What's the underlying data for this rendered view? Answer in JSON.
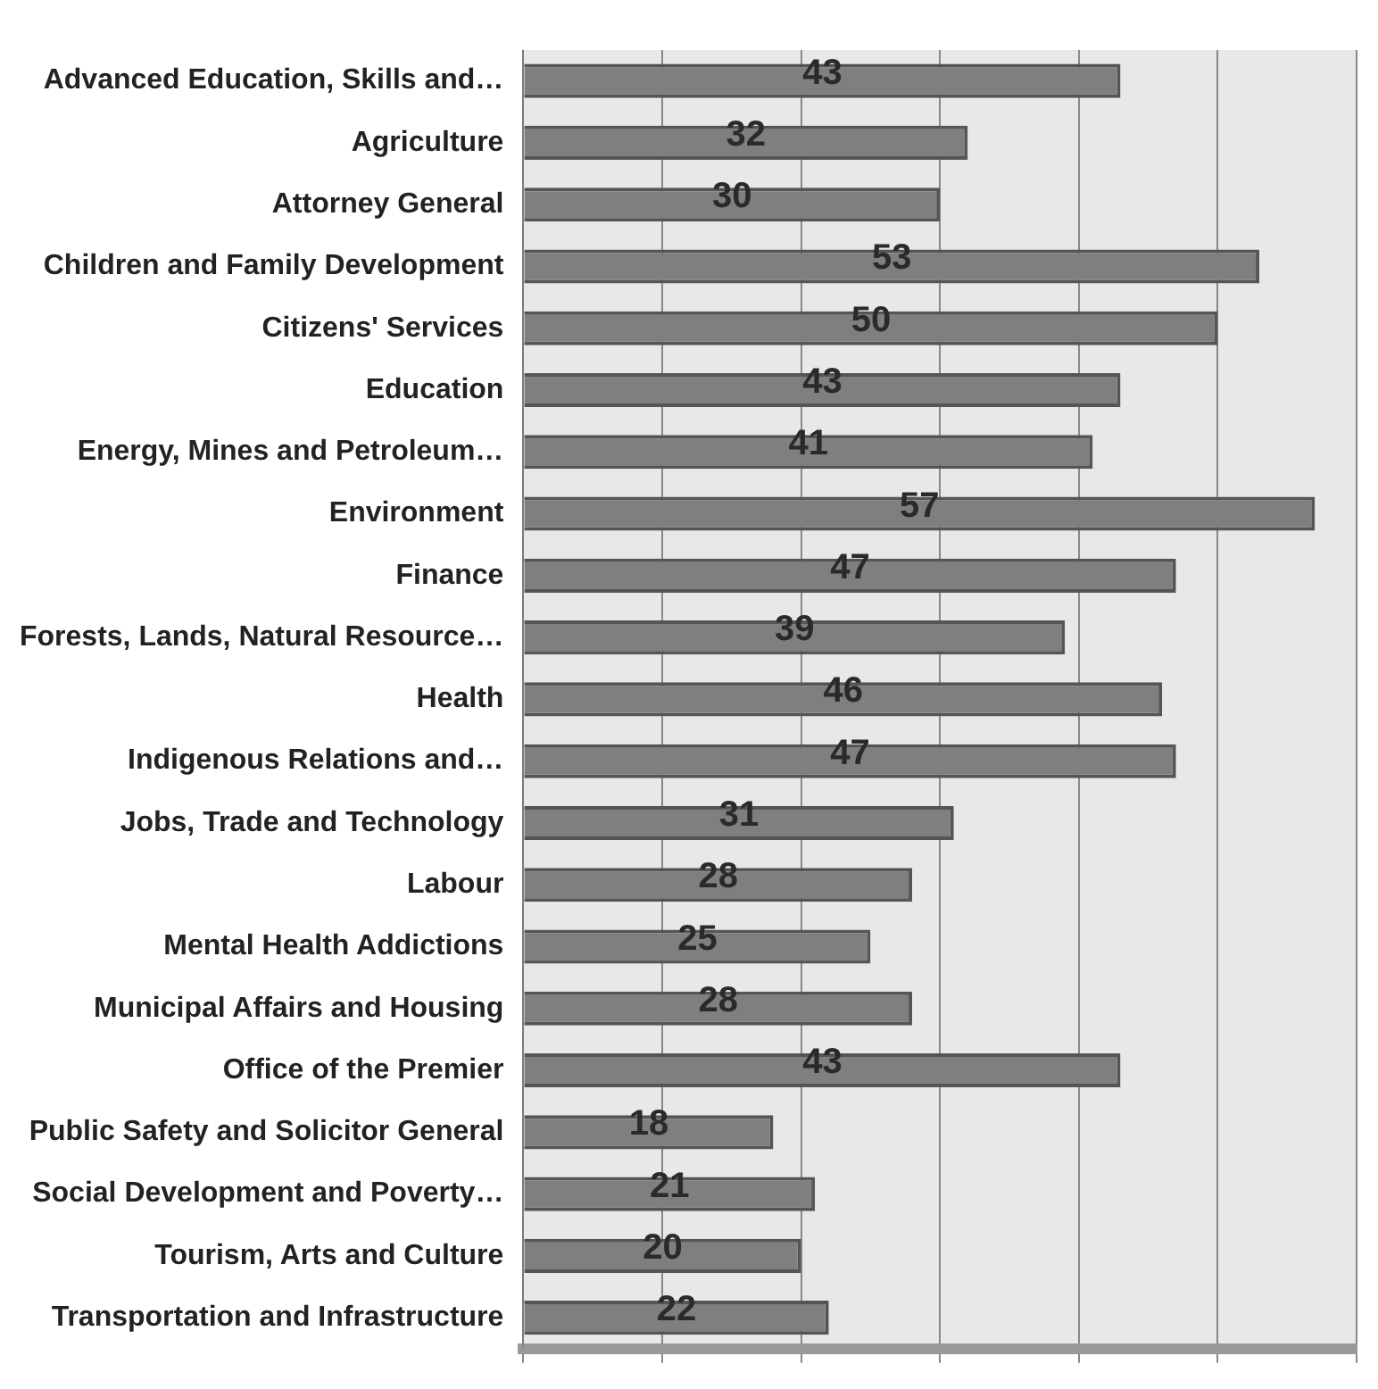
{
  "chart_data": {
    "type": "bar",
    "orientation": "horizontal",
    "categories": [
      "Advanced Education, Skills and…",
      "Agriculture",
      "Attorney General",
      "Children and Family Development",
      "Citizens' Services",
      "Education",
      "Energy, Mines and Petroleum…",
      "Environment",
      "Finance",
      "Forests, Lands, Natural Resource…",
      "Health",
      "Indigenous Relations and…",
      "Jobs, Trade and Technology",
      "Labour",
      "Mental Health Addictions",
      "Municipal Affairs and Housing",
      "Office of the Premier",
      "Public Safety and Solicitor General",
      "Social Development and Poverty…",
      "Tourism, Arts and Culture",
      "Transportation and Infrastructure"
    ],
    "values": [
      43,
      32,
      30,
      53,
      50,
      43,
      41,
      57,
      47,
      39,
      46,
      47,
      31,
      28,
      25,
      28,
      43,
      18,
      21,
      20,
      22
    ],
    "color": "#7f7f7f",
    "data_labels": true,
    "grid": "x",
    "tick_labels": "y"
  }
}
